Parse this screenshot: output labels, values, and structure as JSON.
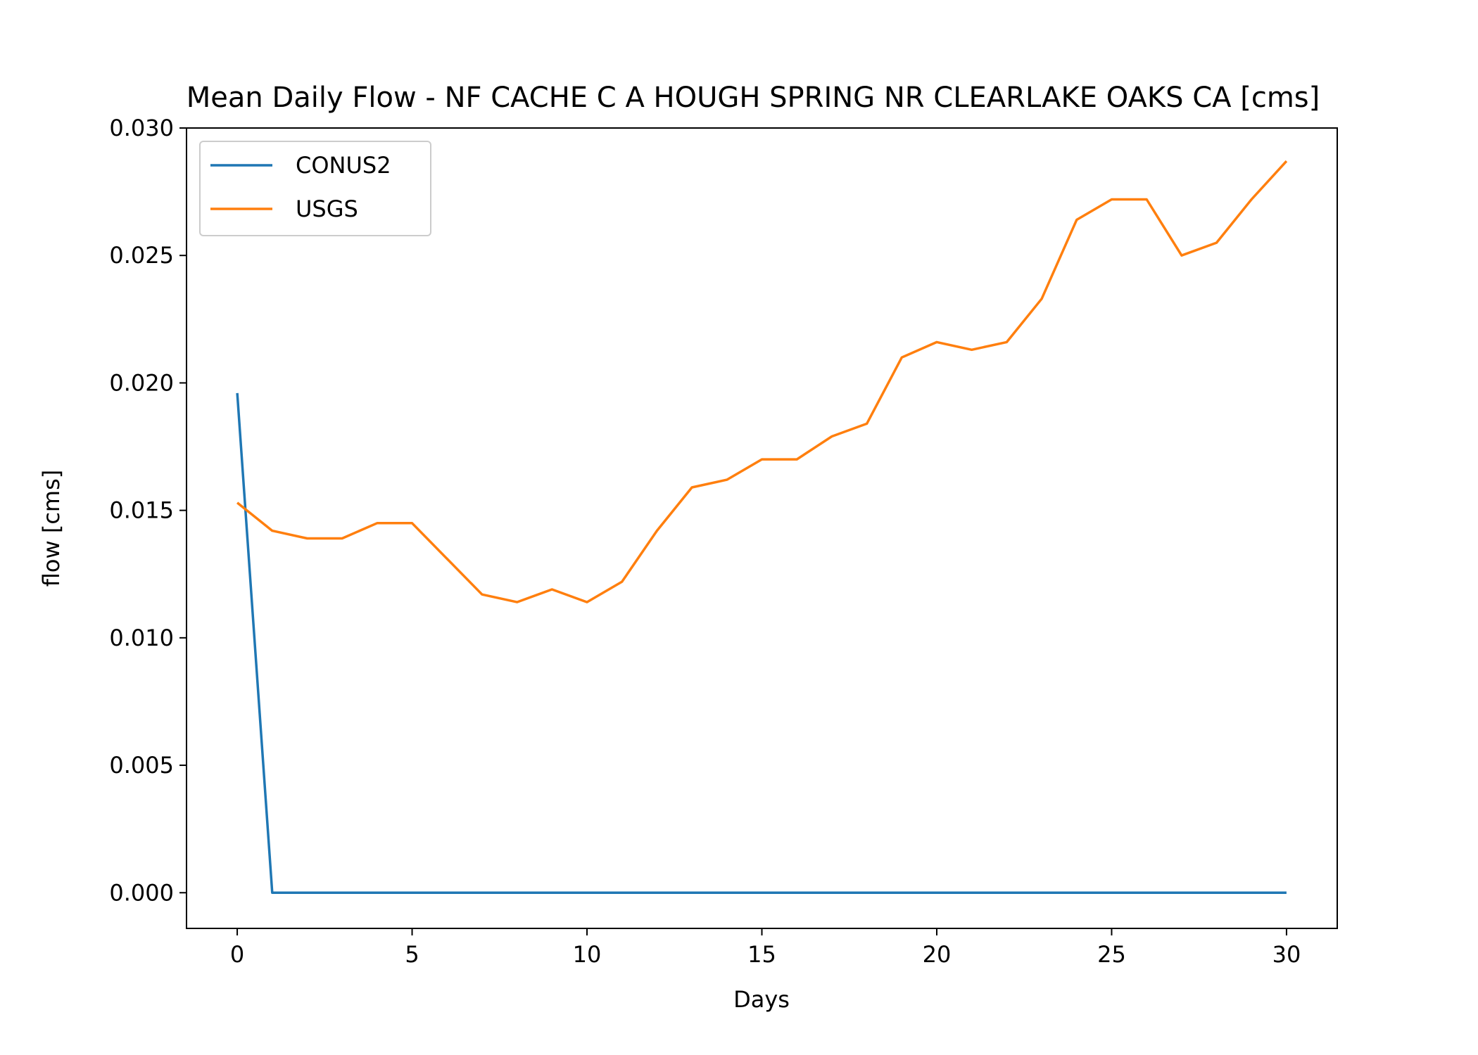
{
  "chart_data": {
    "type": "line",
    "title": "Mean Daily Flow - NF CACHE C A HOUGH SPRING NR CLEARLAKE OAKS CA [cms]",
    "xlabel": "Days",
    "ylabel": "flow [cms]",
    "xlim": [
      -1.45,
      31.45
    ],
    "ylim": [
      -0.0014,
      0.03
    ],
    "xticks": [
      0,
      5,
      10,
      15,
      20,
      25,
      30
    ],
    "xtick_labels": [
      "0",
      "5",
      "10",
      "15",
      "20",
      "25",
      "30"
    ],
    "yticks": [
      0,
      0.005,
      0.01,
      0.015,
      0.02,
      0.025,
      0.03
    ],
    "ytick_labels": [
      "0.000",
      "0.005",
      "0.010",
      "0.015",
      "0.020",
      "0.025",
      "0.030"
    ],
    "grid": false,
    "legend_position": "top-left",
    "x": [
      0,
      1,
      2,
      3,
      4,
      5,
      6,
      7,
      8,
      9,
      10,
      11,
      12,
      13,
      14,
      15,
      16,
      17,
      18,
      19,
      20,
      21,
      22,
      23,
      24,
      25,
      26,
      27,
      28,
      29,
      30
    ],
    "series": [
      {
        "name": "CONUS2",
        "color": "#1f77b4",
        "values": [
          0.0196,
          0,
          0,
          0,
          0,
          0,
          0,
          0,
          0,
          0,
          0,
          0,
          0,
          0,
          0,
          0,
          0,
          0,
          0,
          0,
          0,
          0,
          0,
          0,
          0,
          0,
          0,
          0,
          0,
          0,
          0
        ]
      },
      {
        "name": "USGS",
        "color": "#ff7f0e",
        "values": [
          0.0153,
          0.0142,
          0.0139,
          0.0139,
          0.0145,
          0.0145,
          0.0131,
          0.0117,
          0.0114,
          0.0119,
          0.0114,
          0.0122,
          0.0142,
          0.0159,
          0.0162,
          0.017,
          0.017,
          0.0179,
          0.0184,
          0.021,
          0.0216,
          0.0213,
          0.0216,
          0.0233,
          0.0264,
          0.0272,
          0.0272,
          0.025,
          0.0255,
          0.0272,
          0.0287
        ]
      }
    ]
  }
}
